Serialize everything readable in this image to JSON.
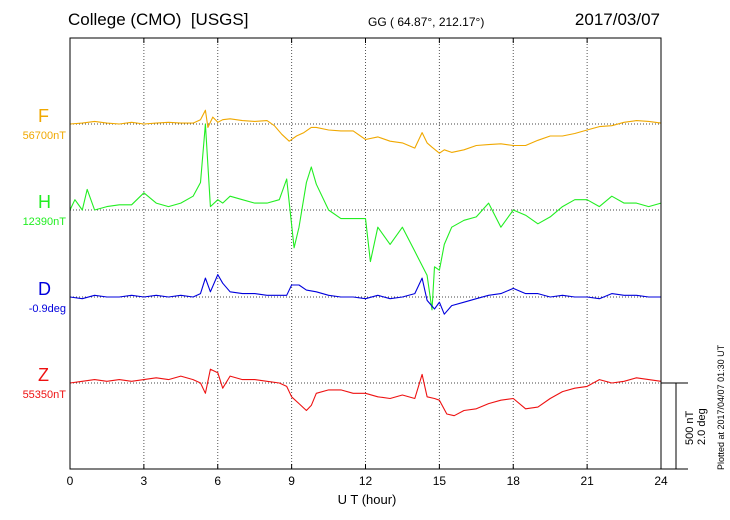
{
  "header": {
    "station": "College (CMO)",
    "source": "[USGS]",
    "coords": "GG ( 64.87°, 212.17°)",
    "date": "2017/03/07"
  },
  "scale_bar": {
    "label": "500 nT",
    "label2": "2.0 deg"
  },
  "plotted_note": "Plotted at 2017/04/07 01:30 UT",
  "chart_data": {
    "type": "line",
    "title": "",
    "xlabel": "U T (hour)",
    "ylabel": "",
    "xlim": [
      0,
      24
    ],
    "x_ticks": [
      0,
      3,
      6,
      9,
      12,
      15,
      18,
      21,
      24
    ],
    "x_tick_labels": [
      "0",
      "3",
      "6",
      "9",
      "12",
      "15",
      "18",
      "21",
      "24"
    ],
    "grid": true,
    "scale": {
      "nT_per_bar": 500,
      "deg_per_bar": 2.0
    },
    "series": [
      {
        "name": "F",
        "baseline_label": "56700nT",
        "unit": "nT",
        "color": "#f0a800",
        "x": [
          0,
          0.5,
          1,
          1.5,
          2,
          2.5,
          3,
          3.5,
          4,
          4.5,
          5,
          5.3,
          5.5,
          5.6,
          5.8,
          6,
          6.2,
          6.5,
          7,
          7.5,
          8,
          8.3,
          8.6,
          8.9,
          9.2,
          9.5,
          9.8,
          10,
          10.5,
          11,
          11.5,
          12,
          12.5,
          13,
          13.5,
          14,
          14.3,
          14.5,
          14.7,
          15,
          15.2,
          15.5,
          16,
          16.5,
          17,
          17.5,
          18,
          18.5,
          19,
          19.5,
          20,
          20.5,
          21,
          21.5,
          22,
          22.5,
          23,
          23.5,
          24
        ],
        "values": [
          0,
          5,
          15,
          5,
          0,
          10,
          0,
          5,
          10,
          5,
          5,
          25,
          80,
          -20,
          40,
          10,
          25,
          30,
          20,
          15,
          20,
          -10,
          -60,
          -100,
          -70,
          -50,
          -20,
          -20,
          -35,
          -40,
          -40,
          -90,
          -75,
          -100,
          -110,
          -140,
          -50,
          -110,
          -135,
          -170,
          -150,
          -165,
          -150,
          -125,
          -120,
          -115,
          -125,
          -125,
          -95,
          -70,
          -70,
          -55,
          -35,
          -15,
          -10,
          10,
          20,
          15,
          5
        ]
      },
      {
        "name": "H",
        "baseline_label": "12390nT",
        "unit": "nT",
        "color": "#22ee22",
        "x": [
          0,
          0.2,
          0.5,
          0.7,
          1,
          1.5,
          2,
          2.5,
          3,
          3.5,
          4,
          4.5,
          5,
          5.3,
          5.5,
          5.7,
          6,
          6.2,
          6.5,
          7,
          7.5,
          8,
          8.5,
          8.8,
          9.1,
          9.3,
          9.6,
          9.8,
          10,
          10.5,
          11,
          11.5,
          12,
          12.2,
          12.5,
          13,
          13.5,
          14,
          14.5,
          14.7,
          14.8,
          15,
          15.2,
          15.5,
          16,
          16.5,
          17,
          17.5,
          18,
          18.5,
          19,
          19.5,
          20,
          20.5,
          21,
          21.5,
          22,
          22.5,
          23,
          23.5,
          24
        ],
        "values": [
          0,
          60,
          0,
          120,
          0,
          20,
          30,
          30,
          100,
          40,
          20,
          40,
          80,
          160,
          500,
          20,
          60,
          40,
          80,
          60,
          40,
          40,
          60,
          180,
          -220,
          -100,
          160,
          250,
          150,
          0,
          -50,
          -50,
          -50,
          -300,
          -100,
          -200,
          -100,
          -240,
          -380,
          -580,
          -330,
          -350,
          -200,
          -100,
          -60,
          -40,
          40,
          -100,
          0,
          -30,
          -80,
          -40,
          20,
          60,
          60,
          20,
          80,
          40,
          40,
          20,
          40
        ]
      },
      {
        "name": "D",
        "baseline_label": "-0.9deg",
        "unit": "deg",
        "color": "#0000dd",
        "x": [
          0,
          0.5,
          1,
          1.5,
          2,
          2.5,
          3,
          3.5,
          4,
          4.5,
          5,
          5.3,
          5.5,
          5.7,
          6,
          6.2,
          6.5,
          7,
          7.5,
          8,
          8.5,
          8.8,
          9,
          9.3,
          9.6,
          10,
          10.5,
          11,
          11.5,
          12,
          12.5,
          13,
          13.5,
          14,
          14.3,
          14.5,
          14.8,
          15,
          15.2,
          15.5,
          16,
          16.5,
          17,
          17.5,
          18,
          18.5,
          19,
          19.5,
          20,
          20.5,
          21,
          21.5,
          22,
          22.5,
          23,
          23.5,
          24
        ],
        "values": [
          0.0,
          -0.04,
          0.04,
          0.0,
          0.0,
          0.04,
          0.0,
          0.04,
          0.0,
          0.04,
          0.0,
          0.08,
          0.44,
          0.12,
          0.52,
          0.32,
          0.12,
          0.08,
          0.08,
          0.04,
          0.04,
          0.04,
          0.28,
          0.28,
          0.16,
          0.12,
          0.04,
          0.0,
          0.0,
          -0.04,
          0.04,
          -0.04,
          0.0,
          0.08,
          0.44,
          -0.08,
          -0.28,
          -0.12,
          -0.4,
          -0.2,
          -0.12,
          -0.04,
          0.04,
          0.08,
          0.2,
          0.08,
          0.08,
          0.0,
          0.04,
          0.0,
          0.0,
          -0.04,
          0.08,
          0.04,
          0.04,
          0.0,
          0.0
        ]
      },
      {
        "name": "Z",
        "baseline_label": "55350nT",
        "unit": "nT",
        "color": "#ee1111",
        "x": [
          0,
          0.5,
          1,
          1.5,
          2,
          2.5,
          3,
          3.5,
          4,
          4.5,
          5,
          5.3,
          5.5,
          5.7,
          6,
          6.2,
          6.5,
          7,
          7.5,
          8,
          8.5,
          8.8,
          9,
          9.3,
          9.6,
          9.8,
          10,
          10.5,
          11,
          11.5,
          12,
          12.5,
          13,
          13.5,
          14,
          14.3,
          14.5,
          14.8,
          15,
          15.3,
          15.6,
          16,
          16.5,
          17,
          17.5,
          18,
          18.5,
          19,
          19.5,
          20,
          20.5,
          21,
          21.5,
          22,
          22.5,
          23,
          23.5,
          24
        ],
        "values": [
          0,
          10,
          20,
          10,
          20,
          10,
          20,
          30,
          20,
          40,
          20,
          0,
          -60,
          80,
          60,
          -30,
          40,
          20,
          20,
          10,
          0,
          -20,
          -80,
          -120,
          -160,
          -130,
          -60,
          -40,
          -40,
          -60,
          -60,
          -80,
          -90,
          -70,
          -90,
          50,
          -80,
          -90,
          -100,
          -180,
          -190,
          -160,
          -150,
          -120,
          -100,
          -90,
          -150,
          -140,
          -90,
          -50,
          -30,
          -20,
          20,
          0,
          10,
          30,
          20,
          10
        ]
      }
    ]
  }
}
